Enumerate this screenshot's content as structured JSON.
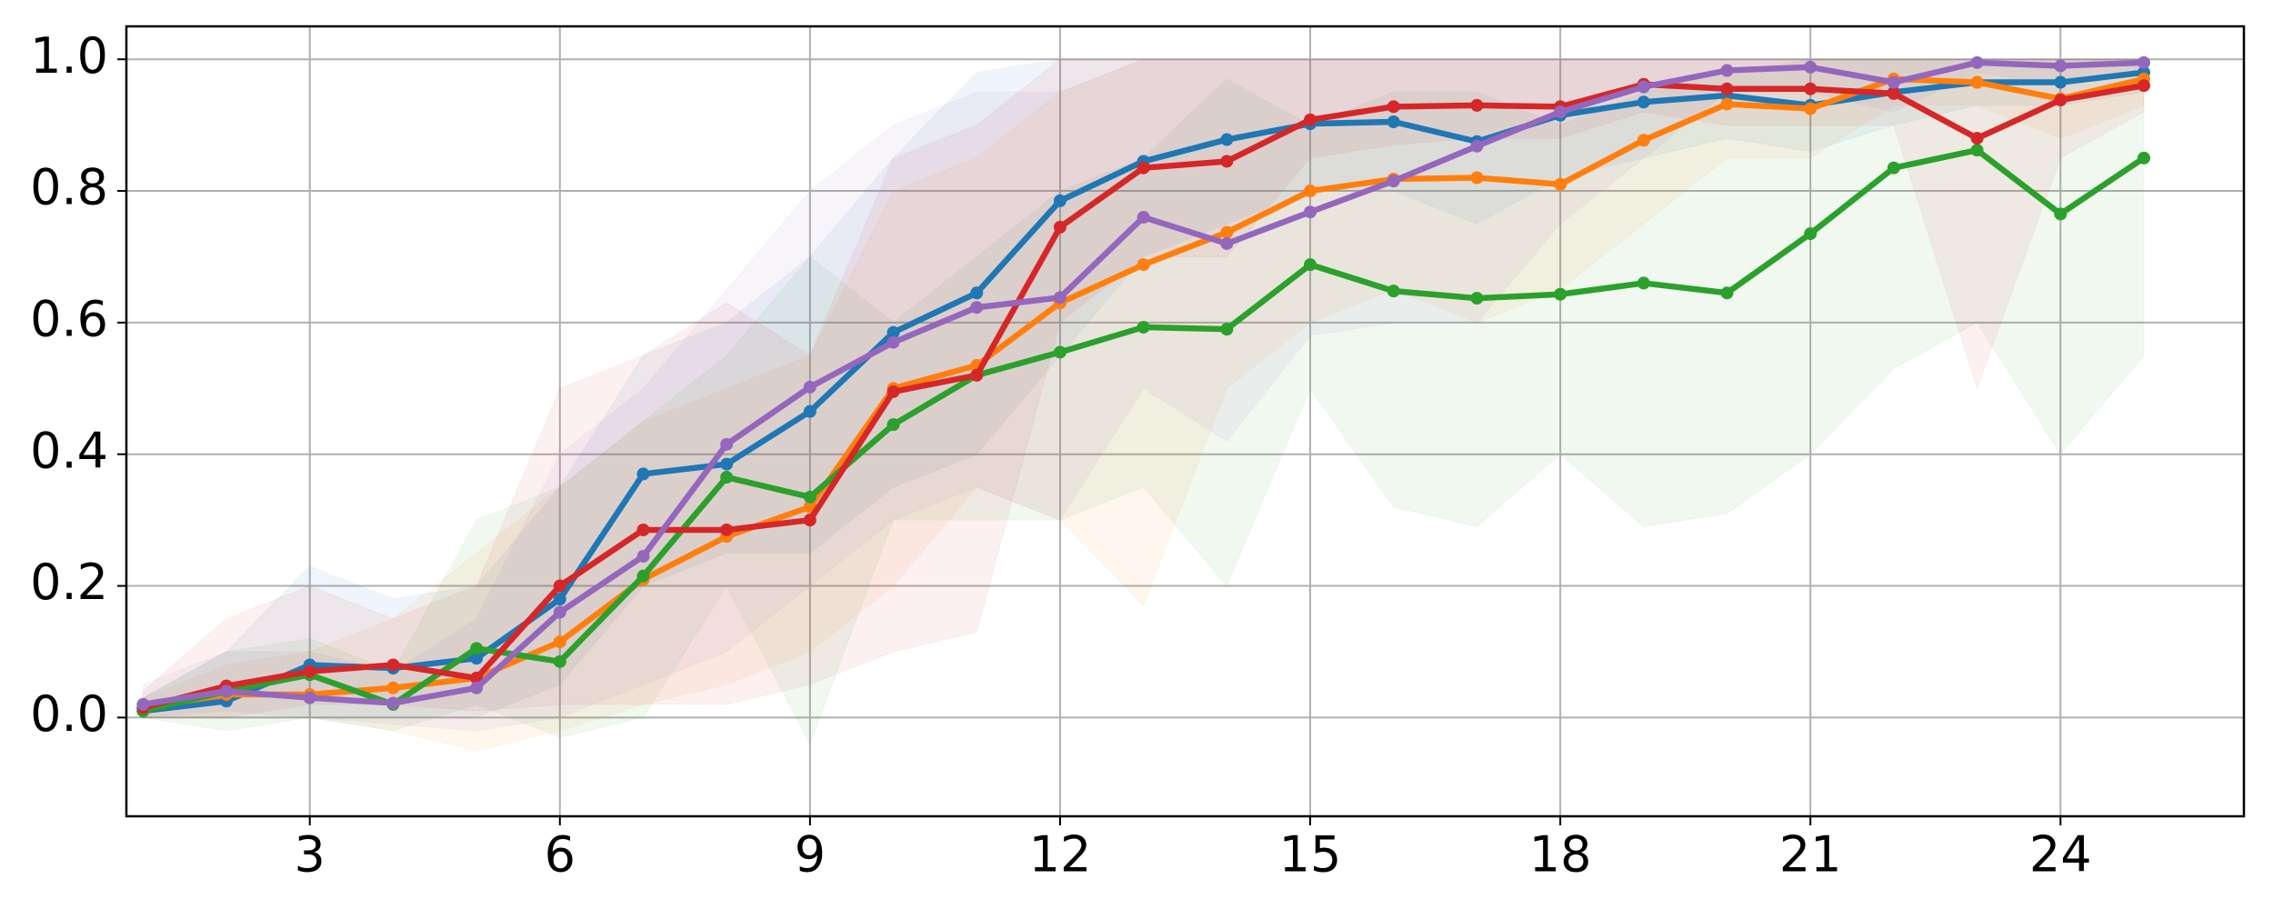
{
  "chart_data": {
    "type": "line",
    "x": [
      1,
      2,
      3,
      4,
      5,
      6,
      7,
      8,
      9,
      10,
      11,
      12,
      13,
      14,
      15,
      16,
      17,
      18,
      19,
      20,
      21,
      22,
      23,
      24,
      25
    ],
    "xlim": [
      0.8,
      26.2
    ],
    "xticks": [
      3,
      6,
      9,
      12,
      15,
      18,
      21,
      24
    ],
    "ylim": [
      -0.15,
      1.05
    ],
    "yticks": [
      {
        "value": 0,
        "label": "0.0"
      },
      0.2,
      0.4,
      0.6,
      0.8,
      {
        "value": 1,
        "label": "1.0"
      }
    ],
    "grid": true,
    "series": [
      {
        "color": "#1f77b4",
        "values": [
          0.01,
          0.025,
          0.08,
          0.075,
          0.09,
          0.18,
          0.37,
          0.385,
          0.465,
          0.585,
          0.645,
          0.785,
          0.845,
          0.878,
          0.902,
          0.905,
          0.875,
          0.915,
          0.935,
          0.945,
          0.93,
          0.95,
          0.965,
          0.965,
          0.98
        ],
        "lower": [
          0,
          0,
          0,
          0,
          0,
          0.05,
          0.2,
          0.25,
          0.25,
          0.35,
          0.4,
          0.55,
          0.7,
          0.75,
          0.8,
          0.8,
          0.75,
          0.82,
          0.85,
          0.88,
          0.86,
          0.9,
          0.93,
          0.93,
          0.95
        ],
        "upper": [
          0.03,
          0.1,
          0.23,
          0.18,
          0.2,
          0.35,
          0.55,
          0.6,
          0.7,
          0.85,
          0.98,
          1,
          1,
          1,
          1,
          1,
          1,
          1,
          1,
          1,
          1,
          1,
          1,
          1,
          1
        ]
      },
      {
        "color": "#ff7f0e",
        "values": [
          0.015,
          0.035,
          0.035,
          0.045,
          0.06,
          0.115,
          0.21,
          0.275,
          0.32,
          0.5,
          0.535,
          0.63,
          0.688,
          0.737,
          0.8,
          0.818,
          0.82,
          0.81,
          0.877,
          0.932,
          0.925,
          0.97,
          0.965,
          0.94,
          0.97
        ],
        "lower": [
          0,
          0,
          0,
          -0.02,
          -0.05,
          -0.02,
          0.02,
          0.05,
          0.1,
          0.2,
          0.35,
          0.3,
          0.17,
          0.5,
          0.6,
          0.65,
          0.6,
          0.65,
          0.75,
          0.85,
          0.85,
          0.93,
          0.93,
          0.88,
          0.93
        ],
        "upper": [
          0.03,
          0.08,
          0.1,
          0.15,
          0.25,
          0.35,
          0.45,
          0.5,
          0.55,
          0.8,
          0.85,
          0.95,
          1,
          1,
          1,
          1,
          1,
          1,
          1,
          1,
          1,
          1,
          1,
          1,
          1
        ]
      },
      {
        "color": "#2ca02c",
        "values": [
          0.01,
          0.04,
          0.065,
          0.02,
          0.105,
          0.085,
          0.215,
          0.365,
          0.335,
          0.445,
          0.52,
          0.555,
          0.593,
          0.59,
          0.688,
          0.648,
          0.637,
          0.643,
          0.66,
          0.645,
          0.735,
          0.835,
          0.862,
          0.765,
          0.85
        ],
        "lower": [
          0,
          -0.02,
          0,
          -0.02,
          0.02,
          -0.03,
          0,
          0.2,
          -0.04,
          0.3,
          0.3,
          0.3,
          0.35,
          0.2,
          0.5,
          0.32,
          0.29,
          0.4,
          0.29,
          0.31,
          0.4,
          0.53,
          0.6,
          0.4,
          0.55
        ],
        "upper": [
          0.03,
          0.1,
          0.12,
          0.07,
          0.3,
          0.35,
          0.45,
          0.55,
          0.7,
          0.6,
          0.7,
          0.8,
          0.85,
          0.97,
          0.9,
          0.95,
          0.95,
          0.9,
          0.95,
          0.98,
          1,
          1,
          1,
          1,
          1
        ]
      },
      {
        "color": "#d62728",
        "values": [
          0.015,
          0.048,
          0.07,
          0.08,
          0.06,
          0.2,
          0.285,
          0.285,
          0.3,
          0.495,
          0.52,
          0.745,
          0.835,
          0.845,
          0.908,
          0.928,
          0.93,
          0.928,
          0.962,
          0.955,
          0.955,
          0.948,
          0.88,
          0.938,
          0.96
        ],
        "lower": [
          0,
          0,
          0.02,
          0.02,
          0.01,
          0.02,
          0.02,
          0.02,
          0.05,
          0.1,
          0.13,
          0.6,
          0.7,
          0.7,
          0.85,
          0.87,
          0.88,
          0.88,
          0.92,
          0.9,
          0.9,
          0.9,
          0.5,
          0.85,
          0.92
        ],
        "upper": [
          0.04,
          0.15,
          0.2,
          0.15,
          0.2,
          0.5,
          0.55,
          0.63,
          0.55,
          0.85,
          0.9,
          1,
          1,
          1,
          1,
          1,
          1,
          1,
          1,
          1,
          1,
          1,
          1,
          1,
          1
        ]
      },
      {
        "color": "#9467bd",
        "values": [
          0.02,
          0.04,
          0.03,
          0.022,
          0.045,
          0.16,
          0.245,
          0.415,
          0.502,
          0.57,
          0.623,
          0.638,
          0.76,
          0.72,
          0.768,
          0.815,
          0.868,
          0.92,
          0.958,
          0.983,
          0.988,
          0.965,
          0.995,
          0.99,
          0.995
        ],
        "lower": [
          0,
          0.01,
          0,
          -0.01,
          -0.02,
          0,
          0.05,
          0.1,
          0.2,
          0.3,
          0.35,
          0.3,
          0.5,
          0.42,
          0.58,
          0.6,
          0.6,
          0.75,
          0.85,
          0.95,
          0.95,
          0.92,
          0.98,
          0.96,
          0.98
        ],
        "upper": [
          0.05,
          0.1,
          0.1,
          0.07,
          0.15,
          0.4,
          0.5,
          0.65,
          0.8,
          0.9,
          0.95,
          0.95,
          1,
          1,
          1,
          1,
          1,
          1,
          1,
          1,
          1,
          1,
          1,
          1,
          1
        ]
      }
    ]
  }
}
